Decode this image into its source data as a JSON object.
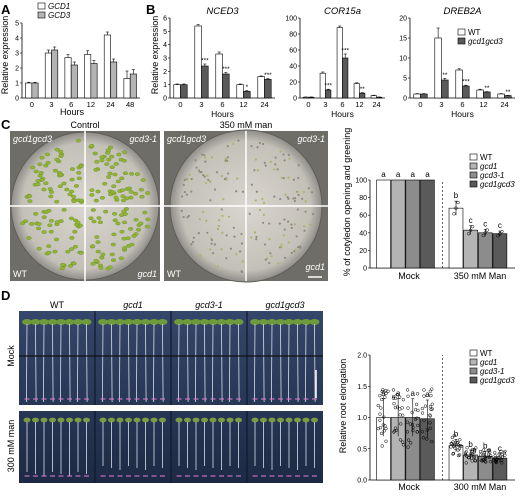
{
  "panels": {
    "A": {
      "letter": "A",
      "ylabel": "Relative expression",
      "xlabel": "Hours",
      "legend": [
        "GCD1",
        "GCD3"
      ]
    },
    "B": {
      "letter": "B",
      "ylabel": "Relative expression",
      "xlabel": "Hours",
      "legend": [
        "WT",
        "gcd1gcd3"
      ]
    },
    "C": {
      "letter": "C",
      "plate_titles": [
        "Control",
        "350 mM man"
      ],
      "quadrant_labels": {
        "top_left": "gcd1gcd3",
        "top_right": "gcd3-1",
        "bottom_left": "WT",
        "bottom_right": "gcd1"
      },
      "ylabel": "% of cotyledon opening and greening",
      "groups": [
        "Mock",
        "350 mM Man"
      ],
      "legend": [
        "WT",
        "gcd1",
        "gcd3-1",
        "gcd1gcd3"
      ]
    },
    "D": {
      "letter": "D",
      "column_labels": [
        "WT",
        "gcd1",
        "gcd3-1",
        "gcd1gcd3"
      ],
      "row_labels": [
        "Mock",
        "300 mM man"
      ],
      "ylabel": "Relative root elongation",
      "groups": [
        "Mock",
        "300 mM Man"
      ],
      "legend": [
        "WT",
        "gcd1",
        "gcd3-1",
        "gcd1gcd3"
      ]
    }
  },
  "colors": {
    "white_bar": "#ffffff",
    "light_gray": "#b4b4b4",
    "mid_gray": "#8c8c8c",
    "dark_gray": "#5a5a5a",
    "plate_bg": "#c9c6bf",
    "root_bg": "#2a3a5a"
  },
  "chart_data": [
    {
      "panel": "A",
      "type": "bar",
      "xlabel": "Hours",
      "ylabel": "Relative expression",
      "categories": [
        "0",
        "3",
        "6",
        "12",
        "24",
        "48"
      ],
      "yticks": [
        0,
        1,
        2,
        3,
        4,
        5
      ],
      "ylim": [
        0,
        5
      ],
      "series": [
        {
          "name": "GCD1",
          "values": [
            1.0,
            3.0,
            2.7,
            2.9,
            4.2,
            1.3
          ],
          "errors": [
            0.05,
            0.2,
            0.2,
            0.25,
            0.2,
            0.5
          ]
        },
        {
          "name": "GCD3",
          "values": [
            1.0,
            3.2,
            2.2,
            2.3,
            2.4,
            1.6
          ],
          "errors": [
            0.05,
            0.2,
            0.2,
            0.2,
            0.2,
            0.3
          ]
        }
      ]
    },
    {
      "panel": "B",
      "type": "bar",
      "title": "NCED3",
      "xlabel": "Hours",
      "ylabel": "Relative expression",
      "categories": [
        "0",
        "3",
        "6",
        "12",
        "24"
      ],
      "yticks": [
        0,
        1,
        2,
        3,
        4,
        5,
        6
      ],
      "ylim": [
        0,
        6
      ],
      "series": [
        {
          "name": "WT",
          "values": [
            1.0,
            5.4,
            3.3,
            1.0,
            1.6
          ],
          "errors": [
            0.05,
            0.1,
            0.15,
            0.05,
            0.05
          ]
        },
        {
          "name": "gcd1gcd3",
          "values": [
            1.0,
            2.4,
            1.8,
            0.5,
            1.4
          ],
          "errors": [
            0.05,
            0.15,
            0.1,
            0.05,
            0.05
          ]
        }
      ],
      "significance": [
        "",
        "***",
        "***",
        "*",
        "***"
      ]
    },
    {
      "panel": "B",
      "type": "bar",
      "title": "COR15a",
      "xlabel": "Hours",
      "categories": [
        "0",
        "3",
        "6",
        "12",
        "24"
      ],
      "yticks": [
        0,
        20,
        40,
        60,
        80,
        100
      ],
      "ylim": [
        0,
        100
      ],
      "series": [
        {
          "name": "WT",
          "values": [
            1,
            31,
            88,
            18,
            3
          ],
          "errors": [
            0.3,
            1.5,
            2,
            1,
            0.5
          ]
        },
        {
          "name": "gcd1gcd3",
          "values": [
            1,
            10,
            50,
            6,
            1
          ],
          "errors": [
            0.3,
            1,
            5,
            0.7,
            0.3
          ]
        }
      ],
      "significance": [
        "",
        "***",
        "***",
        "**",
        ""
      ]
    },
    {
      "panel": "B",
      "type": "bar",
      "title": "DREB2A",
      "xlabel": "Hours",
      "categories": [
        "0",
        "3",
        "6",
        "12",
        "24"
      ],
      "yticks": [
        0,
        5,
        10,
        15,
        20
      ],
      "ylim": [
        0,
        20
      ],
      "series": [
        {
          "name": "WT",
          "values": [
            1,
            15,
            7,
            2,
            1
          ],
          "errors": [
            0.1,
            2.5,
            0.3,
            0.2,
            0.1
          ]
        },
        {
          "name": "gcd1gcd3",
          "values": [
            1,
            4.5,
            3,
            1.5,
            0.6
          ],
          "errors": [
            0.1,
            0.4,
            0.2,
            0.1,
            0.05
          ]
        }
      ],
      "significance": [
        "",
        "**",
        "***",
        "**",
        "**"
      ]
    },
    {
      "panel": "C",
      "type": "bar",
      "ylabel": "% of cotyledon opening and greening",
      "categories": [
        "Mock",
        "350 mM Man"
      ],
      "yticks": [
        0,
        20,
        40,
        60,
        80,
        100
      ],
      "ylim": [
        0,
        100
      ],
      "series": [
        {
          "name": "WT",
          "values": [
            100,
            68
          ],
          "errors": [
            0,
            8
          ],
          "letters": [
            "a",
            "b"
          ]
        },
        {
          "name": "gcd1",
          "values": [
            100,
            43
          ],
          "errors": [
            0,
            5
          ],
          "letters": [
            "a",
            "c"
          ]
        },
        {
          "name": "gcd3-1",
          "values": [
            100,
            40
          ],
          "errors": [
            0,
            4
          ],
          "letters": [
            "a",
            "c"
          ]
        },
        {
          "name": "gcd1gcd3",
          "values": [
            100,
            39
          ],
          "errors": [
            0,
            3
          ],
          "letters": [
            "a",
            "c"
          ]
        }
      ]
    },
    {
      "panel": "D",
      "type": "bar",
      "ylabel": "Relative root elongation",
      "categories": [
        "Mock",
        "300 mM Man"
      ],
      "yticks": [
        0.0,
        0.5,
        1.0,
        1.5,
        2.0
      ],
      "ylim": [
        0,
        2.0
      ],
      "series": [
        {
          "name": "WT",
          "values": [
            1.0,
            0.55
          ],
          "errors": [
            0.3,
            0.1
          ],
          "letters": [
            "a",
            "b"
          ]
        },
        {
          "name": "gcd1",
          "values": [
            1.0,
            0.4
          ],
          "errors": [
            0.3,
            0.08
          ],
          "letters": [
            "a",
            "b"
          ]
        },
        {
          "name": "gcd3-1",
          "values": [
            1.0,
            0.38
          ],
          "errors": [
            0.3,
            0.08
          ],
          "letters": [
            "a",
            "b"
          ]
        },
        {
          "name": "gcd1gcd3",
          "values": [
            0.98,
            0.35
          ],
          "errors": [
            0.3,
            0.07
          ],
          "letters": [
            "a",
            "c"
          ]
        }
      ]
    }
  ]
}
